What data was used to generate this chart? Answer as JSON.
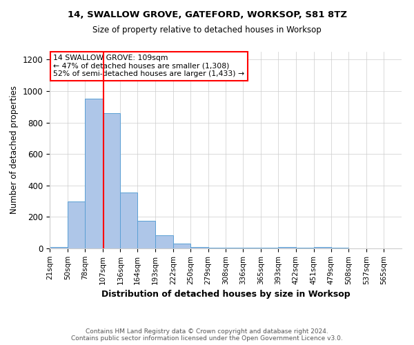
{
  "title_line1": "14, SWALLOW GROVE, GATEFORD, WORKSOP, S81 8TZ",
  "title_line2": "Size of property relative to detached houses in Worksop",
  "xlabel": "Distribution of detached houses by size in Worksop",
  "ylabel": "Number of detached properties",
  "footer_line1": "Contains HM Land Registry data © Crown copyright and database right 2024.",
  "footer_line2": "Contains public sector information licensed under the Open Government Licence v3.0.",
  "annotation_line1": "14 SWALLOW GROVE: 109sqm",
  "annotation_line2": "← 47% of detached houses are smaller (1,308)",
  "annotation_line3": "52% of semi-detached houses are larger (1,433) →",
  "bar_edges": [
    21,
    50,
    78,
    107,
    136,
    164,
    193,
    222,
    250,
    279,
    308,
    336,
    365,
    393,
    422,
    451,
    479,
    508,
    537,
    565,
    594
  ],
  "bar_heights": [
    10,
    300,
    950,
    860,
    355,
    175,
    85,
    30,
    10,
    5,
    5,
    5,
    5,
    10,
    5,
    10,
    5,
    0,
    0,
    0
  ],
  "bar_color": "#aec6e8",
  "bar_edgecolor": "#5a9fd4",
  "bar_linewidth": 0.7,
  "redline_x": 109,
  "ylim": [
    0,
    1250
  ],
  "yticks": [
    0,
    200,
    400,
    600,
    800,
    1000,
    1200
  ],
  "background_color": "#ffffff",
  "grid_color": "#cccccc",
  "annotation_box_edgecolor": "red",
  "redline_color": "red",
  "redline_linewidth": 1.5
}
